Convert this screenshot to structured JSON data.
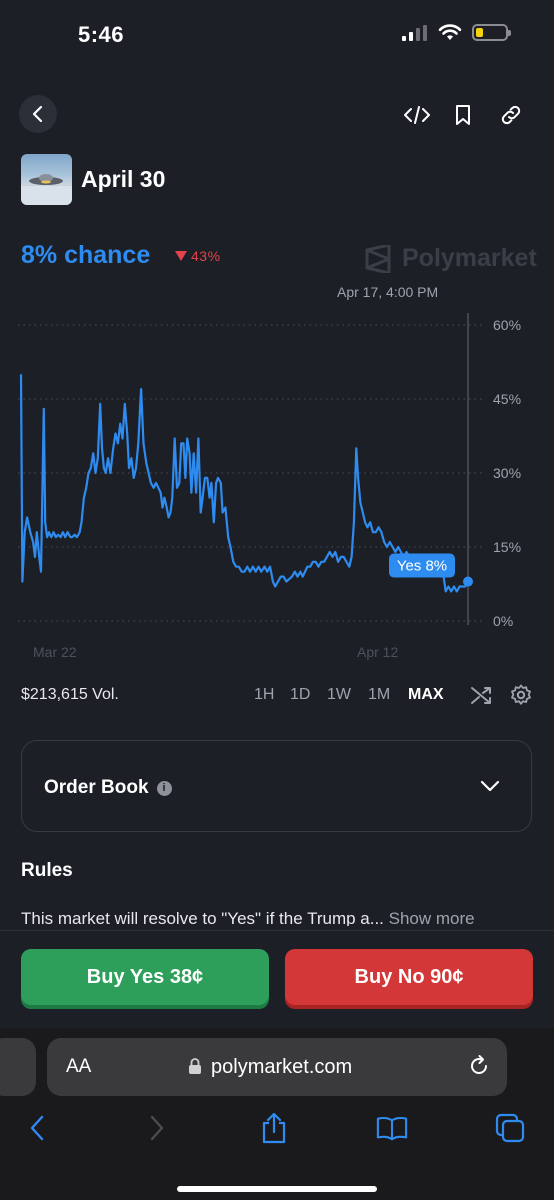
{
  "status_bar": {
    "time": "5:46"
  },
  "header": {
    "title": "April 30",
    "chance": "8% chance",
    "change": "43%",
    "brand": "Polymarket",
    "hover_date": "Apr 17, 4:00 PM"
  },
  "chart_data": {
    "type": "line",
    "series": [
      {
        "name": "Yes",
        "points": [
          [
            0,
            50
          ],
          [
            0.3,
            8
          ],
          [
            0.8,
            18
          ],
          [
            1.3,
            21
          ],
          [
            2,
            18
          ],
          [
            2.6,
            16
          ],
          [
            3,
            13
          ],
          [
            3.4,
            18
          ],
          [
            3.9,
            13
          ],
          [
            4.3,
            10
          ],
          [
            4.9,
            43
          ],
          [
            5.2,
            20
          ],
          [
            5.6,
            17
          ],
          [
            6,
            18
          ],
          [
            6.5,
            17
          ],
          [
            7,
            18
          ],
          [
            7.5,
            17
          ],
          [
            8,
            17.5
          ],
          [
            8.5,
            17
          ],
          [
            9,
            18
          ],
          [
            9.5,
            17
          ],
          [
            10,
            18
          ],
          [
            10.6,
            17
          ],
          [
            11,
            17
          ],
          [
            11.5,
            17.5
          ],
          [
            12,
            17
          ],
          [
            12.6,
            18
          ],
          [
            13,
            20
          ],
          [
            13.5,
            25
          ],
          [
            14,
            27
          ],
          [
            14.5,
            30
          ],
          [
            15,
            31
          ],
          [
            15.5,
            34
          ],
          [
            16,
            30
          ],
          [
            16.5,
            33
          ],
          [
            17,
            44
          ],
          [
            17.4,
            35
          ],
          [
            17.8,
            31
          ],
          [
            18.2,
            30
          ],
          [
            18.7,
            33
          ],
          [
            19.2,
            30
          ],
          [
            19.8,
            35
          ],
          [
            20.3,
            38
          ],
          [
            20.8,
            36
          ],
          [
            21.3,
            40
          ],
          [
            21.8,
            37
          ],
          [
            22.3,
            44
          ],
          [
            22.8,
            38
          ],
          [
            23.2,
            31
          ],
          [
            23.7,
            33
          ],
          [
            24.2,
            29
          ],
          [
            24.7,
            31
          ],
          [
            25.2,
            36
          ],
          [
            25.8,
            47
          ],
          [
            26.3,
            36
          ],
          [
            26.9,
            32
          ],
          [
            27.4,
            30
          ],
          [
            27.9,
            28
          ],
          [
            28.5,
            27
          ],
          [
            29,
            28
          ],
          [
            29.5,
            27
          ],
          [
            30,
            26
          ],
          [
            30.4,
            23
          ],
          [
            30.8,
            25
          ],
          [
            31.3,
            23
          ],
          [
            31.7,
            21
          ],
          [
            32.1,
            22
          ],
          [
            32.5,
            25
          ],
          [
            33,
            37
          ],
          [
            33.5,
            27
          ],
          [
            34,
            28
          ],
          [
            34.4,
            36
          ],
          [
            34.9,
            36
          ],
          [
            35.3,
            29
          ],
          [
            35.7,
            37
          ],
          [
            36.2,
            34
          ],
          [
            36.6,
            26
          ],
          [
            37.1,
            34
          ],
          [
            37.6,
            26
          ],
          [
            38.1,
            37
          ],
          [
            38.6,
            22
          ],
          [
            39,
            25
          ],
          [
            39.5,
            29
          ],
          [
            40,
            29
          ],
          [
            40.5,
            25
          ],
          [
            40.9,
            28
          ],
          [
            41.4,
            20
          ],
          [
            41.9,
            28
          ],
          [
            42.3,
            29
          ],
          [
            42.9,
            28
          ],
          [
            43.3,
            22
          ],
          [
            43.9,
            23
          ],
          [
            44.5,
            17
          ],
          [
            45,
            15
          ],
          [
            45.6,
            12
          ],
          [
            46.2,
            11
          ],
          [
            46.8,
            11
          ],
          [
            47.4,
            10
          ],
          [
            48,
            10
          ],
          [
            48.6,
            11
          ],
          [
            49.2,
            10
          ],
          [
            49.8,
            11
          ],
          [
            50.4,
            10
          ],
          [
            51,
            11
          ],
          [
            51.6,
            10
          ],
          [
            52.3,
            11
          ],
          [
            52.9,
            10
          ],
          [
            53.5,
            11
          ],
          [
            54.1,
            8
          ],
          [
            54.6,
            7
          ],
          [
            55.2,
            8
          ],
          [
            55.8,
            9
          ],
          [
            56.4,
            9
          ],
          [
            57,
            8
          ],
          [
            57.6,
            8.5
          ],
          [
            58.2,
            9
          ],
          [
            58.8,
            10
          ],
          [
            59.4,
            9
          ],
          [
            60,
            10
          ],
          [
            60.5,
            9
          ],
          [
            61,
            10
          ],
          [
            61.5,
            11
          ],
          [
            62.1,
            11
          ],
          [
            62.7,
            12
          ],
          [
            63.3,
            12
          ],
          [
            63.9,
            11
          ],
          [
            64.5,
            12
          ],
          [
            65.1,
            12
          ],
          [
            65.7,
            13
          ],
          [
            66.3,
            14
          ],
          [
            66.9,
            13
          ],
          [
            67.5,
            14
          ],
          [
            68.1,
            12
          ],
          [
            68.7,
            13
          ],
          [
            69.3,
            13
          ],
          [
            69.9,
            12
          ],
          [
            70.5,
            11
          ],
          [
            71,
            13
          ],
          [
            71.5,
            20
          ],
          [
            72,
            35
          ],
          [
            72.4,
            29
          ],
          [
            72.9,
            24
          ],
          [
            73.4,
            22
          ],
          [
            73.9,
            20
          ],
          [
            74.4,
            19
          ],
          [
            75,
            20
          ],
          [
            75.6,
            18
          ],
          [
            76.2,
            18
          ],
          [
            76.8,
            19
          ],
          [
            77.4,
            18
          ],
          [
            78,
            16
          ],
          [
            78.6,
            15
          ],
          [
            79.2,
            16
          ],
          [
            79.8,
            15
          ],
          [
            80.4,
            14
          ],
          [
            81,
            15
          ],
          [
            81.6,
            14
          ],
          [
            82.2,
            13
          ],
          [
            82.8,
            14
          ],
          [
            83.4,
            13
          ],
          [
            84,
            13
          ],
          [
            84.6,
            13
          ],
          [
            85.2,
            13
          ],
          [
            85.8,
            12
          ],
          [
            86.4,
            12
          ],
          [
            87,
            11
          ],
          [
            87.6,
            12
          ],
          [
            88.2,
            11
          ],
          [
            88.8,
            10
          ],
          [
            89.4,
            11
          ],
          [
            90,
            10
          ],
          [
            90.6,
            10
          ],
          [
            91.2,
            6
          ],
          [
            91.8,
            7
          ],
          [
            92.4,
            6
          ],
          [
            93,
            7
          ],
          [
            93.6,
            6
          ],
          [
            94.2,
            7
          ],
          [
            94.8,
            7
          ],
          [
            95.4,
            7
          ],
          [
            96,
            8
          ]
        ],
        "current_label": "Yes 8%",
        "color": "#2e8cf0"
      }
    ],
    "x_ticks": [
      "Mar 22",
      "Apr 12"
    ],
    "y_ticks": [
      "60%",
      "45%",
      "30%",
      "15%",
      "0%"
    ],
    "ylim": [
      0,
      60
    ],
    "grid": true
  },
  "volume": "$213,615 Vol.",
  "ranges": [
    "1H",
    "1D",
    "1W",
    "1M",
    "MAX"
  ],
  "active_range": "MAX",
  "order_book": {
    "label": "Order Book"
  },
  "rules": {
    "heading": "Rules",
    "text": "This market will resolve to \"Yes\" if the Trump a...",
    "show_more": "Show more"
  },
  "actions": {
    "buy_yes": "Buy Yes 38¢",
    "buy_no": "Buy No 90¢",
    "yes_color": "#2e9e5b",
    "no_color": "#d43737"
  },
  "browser": {
    "aa": "AA",
    "url": "polymarket.com"
  }
}
